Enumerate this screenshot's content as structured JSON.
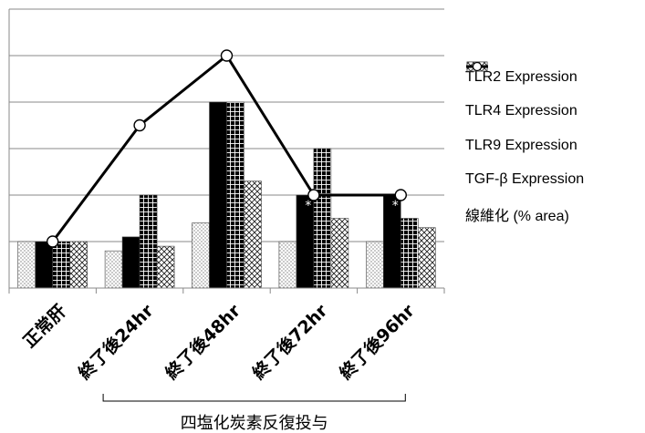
{
  "chart_data": {
    "type": "bar",
    "categories": [
      "正常肝",
      "終了後24hr",
      "終了後48hr",
      "終了後72hr",
      "終了後96hr"
    ],
    "series": [
      {
        "name": "TLR2 Expression",
        "kind": "bar",
        "pattern": "dots-white",
        "values": [
          1.0,
          0.8,
          1.4,
          1.0,
          1.0
        ]
      },
      {
        "name": "TLR4 Expression",
        "kind": "bar",
        "pattern": "solid-black",
        "values": [
          1.0,
          1.1,
          4.0,
          2.0,
          2.0
        ]
      },
      {
        "name": "TLR9 Expression",
        "kind": "bar",
        "pattern": "grid-black",
        "values": [
          1.0,
          2.0,
          4.0,
          3.0,
          1.5
        ]
      },
      {
        "name": "TGF-β Expression",
        "kind": "bar",
        "pattern": "crosshatch",
        "values": [
          1.0,
          0.9,
          2.3,
          1.5,
          1.3
        ]
      },
      {
        "name": "線維化 (% area)",
        "kind": "line",
        "values": [
          1.0,
          3.5,
          5.0,
          2.0,
          2.0
        ]
      }
    ],
    "ylim": [
      0,
      6
    ],
    "y_gridlines": [
      0,
      1,
      2,
      3,
      4,
      5,
      6
    ],
    "y_tick_labels_shown": false,
    "annotations": [
      {
        "category": "終了後72hr",
        "text": "*"
      },
      {
        "category": "終了後96hr",
        "text": "*"
      }
    ],
    "bracket": {
      "from": "終了後24hr",
      "to": "終了後96hr",
      "label": "四塩化炭素反復投与"
    },
    "legend_position": "right",
    "grid": true
  }
}
